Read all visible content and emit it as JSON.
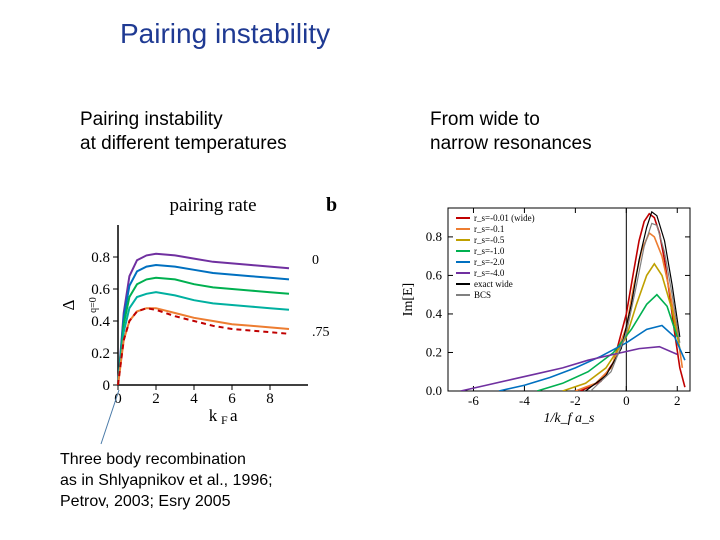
{
  "title": "Pairing instability",
  "left_caption_l1": "Pairing instability",
  "left_caption_l2": "at different temperatures",
  "right_caption_l1": "From wide to",
  "right_caption_l2": "narrow resonances",
  "footnote_l1": "Three body recombination",
  "footnote_l2": "as in Shlyapnikov et al., 1996;",
  "footnote_l3": " Petrov, 2003; Esry 2005",
  "chart_left": {
    "type": "line",
    "title": "pairing rate",
    "panel_label": "b",
    "ylabel": "Δ_{q=0}/ε_F",
    "xlabel": "k_F a",
    "xlim": [
      0,
      10
    ],
    "ylim": [
      0,
      1.0
    ],
    "xticks": [
      0,
      2,
      4,
      6,
      8
    ],
    "yticks": [
      0,
      0.2,
      0.4,
      0.6,
      0.8
    ],
    "background_color": "#ffffff",
    "axis_color": "#000000",
    "axis_width": 1.5,
    "label_fontsize": 17,
    "tick_fontsize": 15,
    "right_labels": [
      {
        "text": "0",
        "y": 0.78,
        "color": "#7030a0"
      },
      {
        "text": ".75",
        "y": 0.33,
        "color": "#c00000"
      }
    ],
    "series": [
      {
        "name": "T=0",
        "color": "#7030a0",
        "dash": "solid",
        "width": 2,
        "points": [
          [
            0,
            0
          ],
          [
            0.3,
            0.45
          ],
          [
            0.6,
            0.68
          ],
          [
            1.0,
            0.78
          ],
          [
            1.5,
            0.81
          ],
          [
            2.0,
            0.82
          ],
          [
            3.0,
            0.81
          ],
          [
            4.0,
            0.79
          ],
          [
            5.0,
            0.77
          ],
          [
            6.0,
            0.76
          ],
          [
            7.0,
            0.75
          ],
          [
            8.0,
            0.74
          ],
          [
            9.0,
            0.73
          ]
        ]
      },
      {
        "name": "s2",
        "color": "#0070c0",
        "dash": "solid",
        "width": 2,
        "points": [
          [
            0,
            0
          ],
          [
            0.3,
            0.42
          ],
          [
            0.6,
            0.62
          ],
          [
            1.0,
            0.71
          ],
          [
            1.5,
            0.74
          ],
          [
            2.0,
            0.75
          ],
          [
            3.0,
            0.74
          ],
          [
            4.0,
            0.72
          ],
          [
            5.0,
            0.7
          ],
          [
            6.0,
            0.69
          ],
          [
            7.0,
            0.68
          ],
          [
            8.0,
            0.67
          ],
          [
            9.0,
            0.66
          ]
        ]
      },
      {
        "name": "s3",
        "color": "#00b050",
        "dash": "solid",
        "width": 2,
        "points": [
          [
            0,
            0
          ],
          [
            0.3,
            0.38
          ],
          [
            0.6,
            0.55
          ],
          [
            1.0,
            0.63
          ],
          [
            1.5,
            0.66
          ],
          [
            2.0,
            0.67
          ],
          [
            3.0,
            0.66
          ],
          [
            4.0,
            0.63
          ],
          [
            5.0,
            0.61
          ],
          [
            6.0,
            0.6
          ],
          [
            7.0,
            0.59
          ],
          [
            8.0,
            0.58
          ],
          [
            9.0,
            0.57
          ]
        ]
      },
      {
        "name": "s4",
        "color": "#00b0a0",
        "dash": "solid",
        "width": 2,
        "points": [
          [
            0,
            0
          ],
          [
            0.3,
            0.33
          ],
          [
            0.6,
            0.48
          ],
          [
            1.0,
            0.55
          ],
          [
            1.5,
            0.57
          ],
          [
            2.0,
            0.58
          ],
          [
            3.0,
            0.56
          ],
          [
            4.0,
            0.53
          ],
          [
            5.0,
            0.51
          ],
          [
            6.0,
            0.5
          ],
          [
            7.0,
            0.49
          ],
          [
            8.0,
            0.48
          ],
          [
            9.0,
            0.47
          ]
        ]
      },
      {
        "name": "s5",
        "color": "#ed7d31",
        "dash": "solid",
        "width": 2,
        "points": [
          [
            0,
            0
          ],
          [
            0.3,
            0.28
          ],
          [
            0.6,
            0.4
          ],
          [
            1.0,
            0.46
          ],
          [
            1.5,
            0.48
          ],
          [
            2.0,
            0.48
          ],
          [
            3.0,
            0.45
          ],
          [
            4.0,
            0.42
          ],
          [
            5.0,
            0.4
          ],
          [
            6.0,
            0.38
          ],
          [
            7.0,
            0.37
          ],
          [
            8.0,
            0.36
          ],
          [
            9.0,
            0.35
          ]
        ]
      },
      {
        "name": "T=.75",
        "color": "#c00000",
        "dash": "dashed",
        "width": 2,
        "points": [
          [
            0,
            0
          ],
          [
            0.3,
            0.28
          ],
          [
            0.6,
            0.4
          ],
          [
            1.0,
            0.46
          ],
          [
            1.5,
            0.48
          ],
          [
            2.0,
            0.47
          ],
          [
            3.0,
            0.43
          ],
          [
            4.0,
            0.4
          ],
          [
            5.0,
            0.37
          ],
          [
            6.0,
            0.35
          ],
          [
            7.0,
            0.34
          ],
          [
            8.0,
            0.33
          ],
          [
            9.0,
            0.32
          ]
        ]
      }
    ]
  },
  "chart_right": {
    "type": "line",
    "ylabel": "Im[E]",
    "xlabel": "1/k_f a_s",
    "xlim": [
      -7,
      2.5
    ],
    "ylim": [
      0,
      0.95
    ],
    "xticks": [
      -6,
      -4,
      -2,
      0,
      2
    ],
    "yticks": [
      0.0,
      0.2,
      0.4,
      0.6,
      0.8
    ],
    "background_color": "#ffffff",
    "frame_color": "#000000",
    "frame_width": 1,
    "tick_direction": "in",
    "label_fontsize": 14,
    "tick_fontsize": 13,
    "vline_at": 0,
    "legend": {
      "position": "top-left-inside",
      "fontsize": 9,
      "items": [
        {
          "label": "r_s=-0.01 (wide)",
          "color": "#c00000"
        },
        {
          "label": "r_s=-0.1",
          "color": "#ed7d31"
        },
        {
          "label": "r_s=-0.5",
          "color": "#bfa000"
        },
        {
          "label": "r_s=-1.0",
          "color": "#00b050"
        },
        {
          "label": "r_s=-2.0",
          "color": "#0070c0"
        },
        {
          "label": "r_s=-4.0",
          "color": "#7030a0"
        },
        {
          "label": "exact wide",
          "color": "#000000"
        },
        {
          "label": "BCS",
          "color": "#808080"
        }
      ]
    },
    "series": [
      {
        "name": "r-0.01",
        "color": "#c00000",
        "dash": "solid",
        "width": 1.6,
        "points": [
          [
            -1.8,
            0.0
          ],
          [
            -1.0,
            0.05
          ],
          [
            -0.5,
            0.15
          ],
          [
            0.0,
            0.4
          ],
          [
            0.3,
            0.63
          ],
          [
            0.5,
            0.78
          ],
          [
            0.7,
            0.88
          ],
          [
            0.9,
            0.92
          ],
          [
            1.1,
            0.9
          ],
          [
            1.3,
            0.82
          ],
          [
            1.5,
            0.68
          ],
          [
            1.7,
            0.5
          ],
          [
            1.9,
            0.3
          ],
          [
            2.1,
            0.12
          ],
          [
            2.3,
            0.02
          ]
        ]
      },
      {
        "name": "r-0.1",
        "color": "#ed7d31",
        "dash": "solid",
        "width": 1.6,
        "points": [
          [
            -2.0,
            0.0
          ],
          [
            -1.2,
            0.04
          ],
          [
            -0.6,
            0.12
          ],
          [
            0.0,
            0.33
          ],
          [
            0.3,
            0.55
          ],
          [
            0.6,
            0.73
          ],
          [
            0.9,
            0.82
          ],
          [
            1.1,
            0.8
          ],
          [
            1.4,
            0.7
          ],
          [
            1.7,
            0.52
          ],
          [
            2.0,
            0.3
          ],
          [
            2.2,
            0.12
          ]
        ]
      },
      {
        "name": "r-0.5",
        "color": "#bfa000",
        "dash": "solid",
        "width": 1.6,
        "points": [
          [
            -2.5,
            0.0
          ],
          [
            -1.6,
            0.04
          ],
          [
            -0.8,
            0.12
          ],
          [
            0.0,
            0.28
          ],
          [
            0.4,
            0.45
          ],
          [
            0.8,
            0.6
          ],
          [
            1.1,
            0.66
          ],
          [
            1.4,
            0.6
          ],
          [
            1.8,
            0.42
          ],
          [
            2.1,
            0.22
          ]
        ]
      },
      {
        "name": "r-1.0",
        "color": "#00b050",
        "dash": "solid",
        "width": 1.6,
        "points": [
          [
            -3.5,
            0.0
          ],
          [
            -2.5,
            0.04
          ],
          [
            -1.5,
            0.1
          ],
          [
            -0.5,
            0.2
          ],
          [
            0.2,
            0.32
          ],
          [
            0.8,
            0.45
          ],
          [
            1.2,
            0.5
          ],
          [
            1.6,
            0.44
          ],
          [
            2.0,
            0.28
          ]
        ]
      },
      {
        "name": "r-2.0",
        "color": "#0070c0",
        "dash": "solid",
        "width": 1.6,
        "points": [
          [
            -5.0,
            0.0
          ],
          [
            -4.0,
            0.03
          ],
          [
            -3.0,
            0.07
          ],
          [
            -2.0,
            0.12
          ],
          [
            -1.0,
            0.18
          ],
          [
            0.0,
            0.25
          ],
          [
            0.8,
            0.32
          ],
          [
            1.4,
            0.34
          ],
          [
            1.9,
            0.28
          ],
          [
            2.3,
            0.16
          ]
        ]
      },
      {
        "name": "r-4.0",
        "color": "#7030a0",
        "dash": "solid",
        "width": 1.6,
        "points": [
          [
            -6.5,
            0.0
          ],
          [
            -5.5,
            0.03
          ],
          [
            -4.5,
            0.06
          ],
          [
            -3.5,
            0.09
          ],
          [
            -2.5,
            0.12
          ],
          [
            -1.5,
            0.16
          ],
          [
            -0.5,
            0.19
          ],
          [
            0.5,
            0.22
          ],
          [
            1.3,
            0.23
          ],
          [
            2.0,
            0.19
          ]
        ]
      },
      {
        "name": "exact",
        "color": "#000000",
        "dash": "solid",
        "width": 1.2,
        "points": [
          [
            -1.6,
            0.0
          ],
          [
            -0.8,
            0.08
          ],
          [
            -0.2,
            0.22
          ],
          [
            0.2,
            0.45
          ],
          [
            0.5,
            0.68
          ],
          [
            0.8,
            0.85
          ],
          [
            1.0,
            0.93
          ],
          [
            1.2,
            0.91
          ],
          [
            1.5,
            0.78
          ],
          [
            1.8,
            0.55
          ],
          [
            2.1,
            0.28
          ]
        ]
      },
      {
        "name": "BCS",
        "color": "#808080",
        "dash": "solid",
        "width": 1.2,
        "points": [
          [
            -1.4,
            0.0
          ],
          [
            -0.6,
            0.1
          ],
          [
            0.0,
            0.3
          ],
          [
            0.4,
            0.55
          ],
          [
            0.7,
            0.75
          ],
          [
            1.0,
            0.87
          ],
          [
            1.2,
            0.86
          ],
          [
            1.5,
            0.72
          ],
          [
            1.8,
            0.5
          ],
          [
            2.1,
            0.25
          ]
        ]
      }
    ]
  },
  "arrow": {
    "color": "#4a7aa8",
    "width": 1
  }
}
